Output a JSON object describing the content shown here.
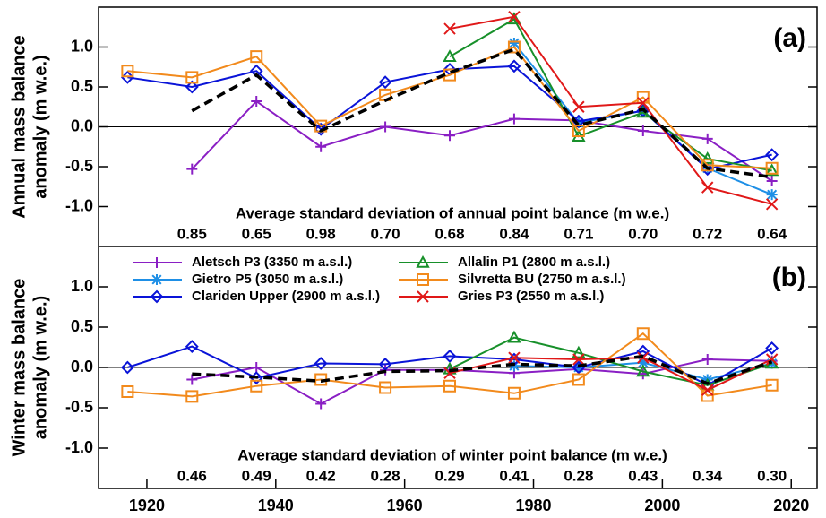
{
  "chart_data": [
    {
      "type": "line",
      "panel_label": "(a)",
      "ylabel": [
        "Annual mass balance",
        "anomaly (m w.e.)"
      ],
      "x": [
        1917,
        1927,
        1937,
        1947,
        1957,
        1967,
        1977,
        1987,
        1997,
        2007,
        2017
      ],
      "xlim": [
        1912.5,
        2024
      ],
      "ylim": [
        -1.5,
        1.5
      ],
      "yticks": [
        {
          "value": -1,
          "label": "-1.0"
        },
        -0.5,
        {
          "value": 0,
          "label": "0.0"
        },
        0.5,
        {
          "value": 1,
          "label": "1.0"
        }
      ],
      "std_title": "Average standard deviation of annual point balance (m w.e.)",
      "std_labels": [
        null,
        "0.85",
        "0.65",
        "0.98",
        "0.70",
        "0.68",
        "0.84",
        "0.71",
        "0.70",
        "0.72",
        "0.64"
      ],
      "series": [
        {
          "color": "#8a1fc4",
          "marker": "plus",
          "values": [
            null,
            -0.53,
            0.32,
            -0.25,
            0.0,
            -0.11,
            0.1,
            0.08,
            -0.05,
            -0.15,
            -0.68
          ]
        },
        {
          "color": "#1e8fe6",
          "marker": "asterisk",
          "values": [
            null,
            null,
            null,
            null,
            null,
            null,
            1.05,
            0.05,
            0.2,
            -0.52,
            -0.85
          ]
        },
        {
          "color": "#0a14d8",
          "marker": "diamond",
          "values": [
            0.62,
            0.5,
            0.7,
            -0.03,
            0.56,
            0.72,
            0.76,
            0.07,
            0.2,
            -0.53,
            -0.35
          ]
        },
        {
          "color": "#17902a",
          "marker": "triangle",
          "values": [
            null,
            null,
            null,
            null,
            null,
            0.88,
            1.35,
            -0.12,
            0.18,
            -0.4,
            -0.55
          ]
        },
        {
          "color": "#f28a1c",
          "marker": "square",
          "values": [
            0.7,
            0.62,
            0.88,
            0.01,
            0.4,
            0.65,
            1.0,
            -0.05,
            0.37,
            -0.48,
            -0.52
          ]
        },
        {
          "color": "#e01818",
          "marker": "x",
          "values": [
            null,
            null,
            null,
            null,
            null,
            1.23,
            1.38,
            0.25,
            0.3,
            -0.76,
            -0.97
          ]
        },
        {
          "color": "#000000",
          "dash": true,
          "values": [
            null,
            0.2,
            0.65,
            -0.05,
            0.33,
            0.68,
            0.97,
            0.02,
            0.22,
            -0.52,
            -0.63
          ]
        }
      ]
    },
    {
      "type": "line",
      "panel_label": "(b)",
      "ylabel": [
        "Winter mass balance",
        "anomaly (m w.e.)"
      ],
      "x": [
        1917,
        1927,
        1937,
        1947,
        1957,
        1967,
        1977,
        1987,
        1997,
        2007,
        2017
      ],
      "xlim": [
        1912.5,
        2024
      ],
      "xticks": [
        1920,
        1940,
        1960,
        1980,
        2000,
        2020
      ],
      "ylim": [
        -1.5,
        1.5
      ],
      "yticks": [
        {
          "value": -1,
          "label": "-1.0"
        },
        -0.5,
        {
          "value": 0,
          "label": "0.0"
        },
        0.5,
        {
          "value": 1,
          "label": "1.0"
        }
      ],
      "std_title": "Average standard deviation of winter point balance (m w.e.)",
      "std_labels": [
        null,
        "0.46",
        "0.49",
        "0.42",
        "0.28",
        "0.29",
        "0.41",
        "0.28",
        "0.43",
        "0.34",
        "0.30"
      ],
      "series": [
        {
          "name": "Aletsch P3 (3350 m a.s.l.)",
          "color": "#8a1fc4",
          "marker": "plus",
          "values": [
            null,
            -0.15,
            0.0,
            -0.45,
            -0.03,
            -0.03,
            -0.07,
            -0.02,
            -0.08,
            0.1,
            0.08
          ]
        },
        {
          "name": "Gietro P5 (3050 m a.s.l.)",
          "color": "#1e8fe6",
          "marker": "asterisk",
          "values": [
            null,
            null,
            null,
            null,
            null,
            null,
            0.02,
            0.0,
            0.06,
            -0.15,
            0.05
          ]
        },
        {
          "name": "Clariden Upper (2900 m a.s.l.)",
          "color": "#0a14d8",
          "marker": "diamond",
          "values": [
            0.0,
            0.26,
            -0.13,
            0.05,
            0.04,
            0.14,
            0.1,
            0.0,
            0.2,
            -0.22,
            0.24
          ]
        },
        {
          "name": "Allalin P1 (2800 m a.s.l.)",
          "color": "#17902a",
          "marker": "triangle",
          "values": [
            null,
            null,
            null,
            null,
            null,
            -0.02,
            0.37,
            0.18,
            -0.05,
            -0.22,
            0.05
          ]
        },
        {
          "name": "Silvretta BU (2750 m a.s.l.)",
          "color": "#f28a1c",
          "marker": "square",
          "values": [
            -0.3,
            -0.36,
            -0.23,
            -0.15,
            -0.25,
            -0.23,
            -0.32,
            -0.15,
            0.42,
            -0.35,
            -0.22
          ]
        },
        {
          "name": "Gries P3 (2550 m a.s.l.)",
          "color": "#e01818",
          "marker": "x",
          "values": [
            null,
            null,
            null,
            null,
            null,
            -0.07,
            0.12,
            0.1,
            0.12,
            -0.28,
            0.1
          ]
        },
        {
          "color": "#000000",
          "dash": true,
          "values": [
            null,
            -0.08,
            -0.12,
            -0.17,
            -0.05,
            -0.04,
            0.04,
            0.02,
            0.14,
            -0.2,
            0.07
          ]
        }
      ]
    }
  ]
}
